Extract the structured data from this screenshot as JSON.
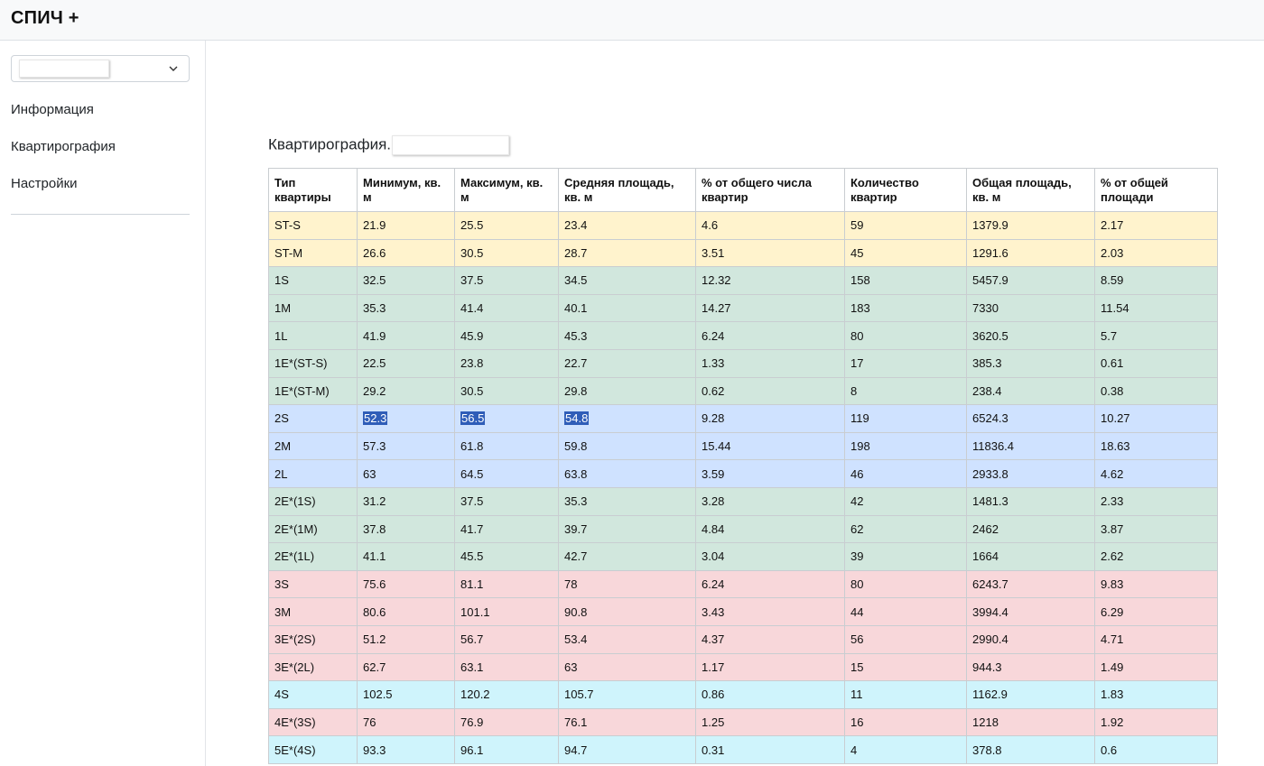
{
  "app": {
    "title": "СПИЧ +"
  },
  "sidebar": {
    "select_value": "",
    "items": [
      {
        "label": "Информация"
      },
      {
        "label": "Квартирография"
      },
      {
        "label": "Настройки"
      }
    ]
  },
  "main": {
    "title": "Квартирография.",
    "title_input_value": "",
    "table": {
      "headers": [
        "Тип квартиры",
        "Минимум, кв. м",
        "Максимум, кв. м",
        "Средняя площадь, кв. м",
        "% от общего числа квартир",
        "Количество квартир",
        "Общая площадь, кв. м",
        "% от общей площади"
      ],
      "row_colors": {
        "yellow": "#fff3cd",
        "green": "#d1e7dd",
        "blue": "#cfe2ff",
        "red": "#f8d7da",
        "cyan": "#cff4fc"
      },
      "selection_color": "#2f5db8",
      "rows": [
        {
          "color": "yellow",
          "cells": [
            "ST-S",
            "21.9",
            "25.5",
            "23.4",
            "4.6",
            "59",
            "1379.9",
            "2.17"
          ]
        },
        {
          "color": "yellow",
          "cells": [
            "ST-M",
            "26.6",
            "30.5",
            "28.7",
            "3.51",
            "45",
            "1291.6",
            "2.03"
          ]
        },
        {
          "color": "green",
          "cells": [
            "1S",
            "32.5",
            "37.5",
            "34.5",
            "12.32",
            "158",
            "5457.9",
            "8.59"
          ]
        },
        {
          "color": "green",
          "cells": [
            "1M",
            "35.3",
            "41.4",
            "40.1",
            "14.27",
            "183",
            "7330",
            "11.54"
          ]
        },
        {
          "color": "green",
          "cells": [
            "1L",
            "41.9",
            "45.9",
            "45.3",
            "6.24",
            "80",
            "3620.5",
            "5.7"
          ]
        },
        {
          "color": "green",
          "cells": [
            "1E*(ST-S)",
            "22.5",
            "23.8",
            "22.7",
            "1.33",
            "17",
            "385.3",
            "0.61"
          ]
        },
        {
          "color": "green",
          "cells": [
            "1E*(ST-M)",
            "29.2",
            "30.5",
            "29.8",
            "0.62",
            "8",
            "238.4",
            "0.38"
          ]
        },
        {
          "color": "blue",
          "selected": [
            1,
            2,
            3
          ],
          "cells": [
            "2S",
            "52.3",
            "56.5",
            "54.8",
            "9.28",
            "119",
            "6524.3",
            "10.27"
          ]
        },
        {
          "color": "blue",
          "cells": [
            "2M",
            "57.3",
            "61.8",
            "59.8",
            "15.44",
            "198",
            "11836.4",
            "18.63"
          ]
        },
        {
          "color": "blue",
          "cells": [
            "2L",
            "63",
            "64.5",
            "63.8",
            "3.59",
            "46",
            "2933.8",
            "4.62"
          ]
        },
        {
          "color": "green",
          "cells": [
            "2E*(1S)",
            "31.2",
            "37.5",
            "35.3",
            "3.28",
            "42",
            "1481.3",
            "2.33"
          ]
        },
        {
          "color": "green",
          "cells": [
            "2E*(1M)",
            "37.8",
            "41.7",
            "39.7",
            "4.84",
            "62",
            "2462",
            "3.87"
          ]
        },
        {
          "color": "green",
          "cells": [
            "2E*(1L)",
            "41.1",
            "45.5",
            "42.7",
            "3.04",
            "39",
            "1664",
            "2.62"
          ]
        },
        {
          "color": "red",
          "cells": [
            "3S",
            "75.6",
            "81.1",
            "78",
            "6.24",
            "80",
            "6243.7",
            "9.83"
          ]
        },
        {
          "color": "red",
          "cells": [
            "3M",
            "80.6",
            "101.1",
            "90.8",
            "3.43",
            "44",
            "3994.4",
            "6.29"
          ]
        },
        {
          "color": "red",
          "cells": [
            "3E*(2S)",
            "51.2",
            "56.7",
            "53.4",
            "4.37",
            "56",
            "2990.4",
            "4.71"
          ]
        },
        {
          "color": "red",
          "cells": [
            "3E*(2L)",
            "62.7",
            "63.1",
            "63",
            "1.17",
            "15",
            "944.3",
            "1.49"
          ]
        },
        {
          "color": "cyan",
          "cells": [
            "4S",
            "102.5",
            "120.2",
            "105.7",
            "0.86",
            "11",
            "1162.9",
            "1.83"
          ]
        },
        {
          "color": "red",
          "cells": [
            "4E*(3S)",
            "76",
            "76.9",
            "76.1",
            "1.25",
            "16",
            "1218",
            "1.92"
          ]
        },
        {
          "color": "cyan",
          "cells": [
            "5E*(4S)",
            "93.3",
            "96.1",
            "94.7",
            "0.31",
            "4",
            "378.8",
            "0.6"
          ]
        }
      ]
    }
  }
}
